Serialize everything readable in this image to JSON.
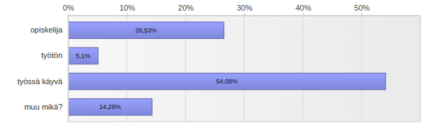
{
  "chart_data": {
    "type": "bar",
    "orientation": "horizontal",
    "categories": [
      "opiskelija",
      "työtön",
      "työssä käyvä",
      "muu mikä?"
    ],
    "values": [
      26.53,
      5.1,
      54.08,
      14.29
    ],
    "value_labels": [
      "26,53%",
      "5,1%",
      "54,08%",
      "14,29%"
    ],
    "data_labels": true,
    "color": "#7f87dc",
    "xlim": [
      0,
      60
    ],
    "xticks": [
      {
        "value": 0,
        "label": "0%"
      },
      {
        "value": 10,
        "label": "10%"
      },
      {
        "value": 20,
        "label": "20%"
      },
      {
        "value": 30,
        "label": "30%"
      },
      {
        "value": 40,
        "label": "40%"
      },
      {
        "value": 50,
        "label": "50%"
      }
    ],
    "grid": true
  }
}
